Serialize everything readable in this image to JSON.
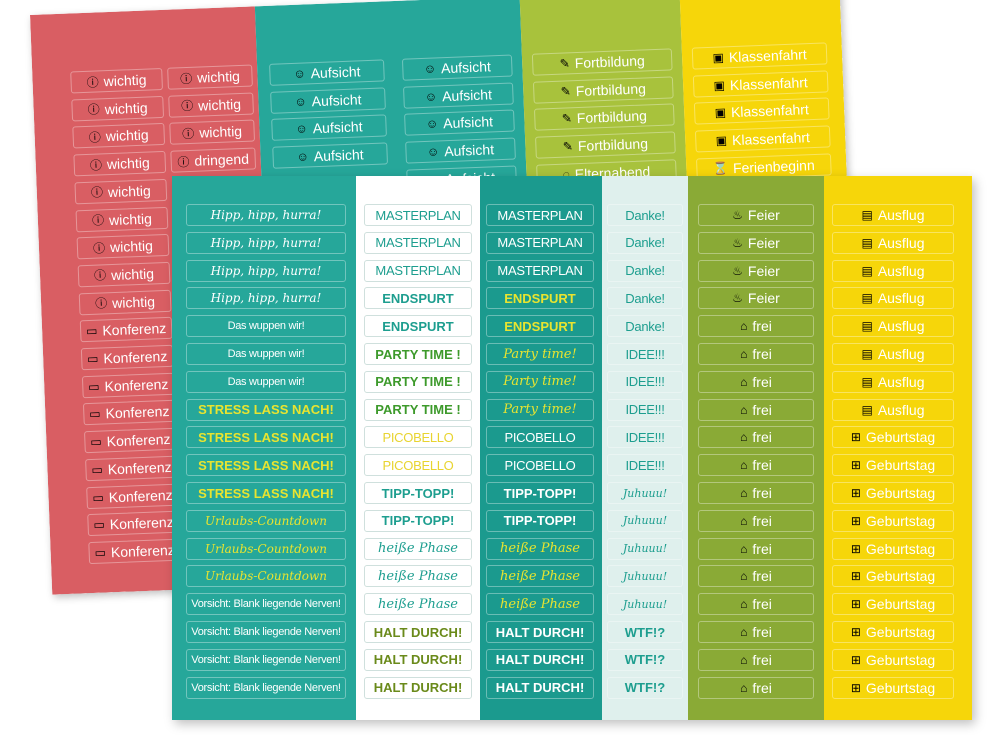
{
  "colors": {
    "red": "#d95e63",
    "teal": "#26a79a",
    "teal_dark": "#1b9a8e",
    "lime": "#a8c23c",
    "yellow": "#f6d60a",
    "white": "#ffffff",
    "pale": "#dff0ed",
    "olive": "#8aaa36",
    "highlight_yellow": "#e5e530"
  },
  "back_sheet": {
    "red_col1": [
      {
        "icon": "ⓘ",
        "text": "wichtig"
      },
      {
        "icon": "ⓘ",
        "text": "wichtig"
      },
      {
        "icon": "ⓘ",
        "text": "wichtig"
      },
      {
        "icon": "ⓘ",
        "text": "wichtig"
      },
      {
        "icon": "ⓘ",
        "text": "wichtig"
      },
      {
        "icon": "ⓘ",
        "text": "wichtig"
      },
      {
        "icon": "ⓘ",
        "text": "wichtig"
      },
      {
        "icon": "ⓘ",
        "text": "wichtig"
      },
      {
        "icon": "ⓘ",
        "text": "wichtig"
      },
      {
        "icon": "▭",
        "text": "Konferenz"
      },
      {
        "icon": "▭",
        "text": "Konferenz"
      },
      {
        "icon": "▭",
        "text": "Konferenz"
      },
      {
        "icon": "▭",
        "text": "Konferenz"
      },
      {
        "icon": "▭",
        "text": "Konferenz"
      },
      {
        "icon": "▭",
        "text": "Konferenz"
      },
      {
        "icon": "▭",
        "text": "Konferenz"
      },
      {
        "icon": "▭",
        "text": "Konferenz"
      },
      {
        "icon": "▭",
        "text": "Konferenz"
      }
    ],
    "red_col2": [
      {
        "icon": "ⓘ",
        "text": "wichtig"
      },
      {
        "icon": "ⓘ",
        "text": "wichtig"
      },
      {
        "icon": "ⓘ",
        "text": "wichtig"
      },
      {
        "icon": "ⓘ",
        "text": "dringend"
      }
    ],
    "teal_col1": [
      {
        "icon": "☺",
        "text": "Aufsicht"
      },
      {
        "icon": "☺",
        "text": "Aufsicht"
      },
      {
        "icon": "☺",
        "text": "Aufsicht"
      },
      {
        "icon": "☺",
        "text": "Aufsicht"
      }
    ],
    "teal_col2": [
      {
        "icon": "☺",
        "text": "Aufsicht"
      },
      {
        "icon": "☺",
        "text": "Aufsicht"
      },
      {
        "icon": "☺",
        "text": "Aufsicht"
      },
      {
        "icon": "☺",
        "text": "Aufsicht"
      },
      {
        "icon": "☺",
        "text": "Aufsicht"
      }
    ],
    "lime_col": [
      {
        "icon": "✎",
        "text": "Fortbildung"
      },
      {
        "icon": "✎",
        "text": "Fortbildung"
      },
      {
        "icon": "✎",
        "text": "Fortbildung"
      },
      {
        "icon": "✎",
        "text": "Fortbildung"
      },
      {
        "icon": "◌",
        "text": "Elternabend"
      }
    ],
    "yellow_col": [
      {
        "icon": "▣",
        "text": "Klassenfahrt"
      },
      {
        "icon": "▣",
        "text": "Klassenfahrt"
      },
      {
        "icon": "▣",
        "text": "Klassenfahrt"
      },
      {
        "icon": "▣",
        "text": "Klassenfahrt"
      },
      {
        "icon": "⌛",
        "text": "Ferienbeginn"
      }
    ]
  },
  "front_sheet": {
    "col1": [
      {
        "text": "Hipp, hipp, hurra!",
        "style": "hand",
        "color": "#ffffff"
      },
      {
        "text": "Hipp, hipp, hurra!",
        "style": "hand",
        "color": "#ffffff"
      },
      {
        "text": "Hipp, hipp, hurra!",
        "style": "hand",
        "color": "#ffffff"
      },
      {
        "text": "Hipp, hipp, hurra!",
        "style": "hand",
        "color": "#ffffff"
      },
      {
        "text": "Das wuppen wir!",
        "style": "narrow",
        "color": "#ffffff"
      },
      {
        "text": "Das wuppen wir!",
        "style": "narrow",
        "color": "#ffffff"
      },
      {
        "text": "Das wuppen wir!",
        "style": "narrow",
        "color": "#ffffff"
      },
      {
        "text": "STRESS LASS NACH!",
        "style": "bold",
        "color": "#e8e430"
      },
      {
        "text": "STRESS LASS NACH!",
        "style": "bold",
        "color": "#e8e430"
      },
      {
        "text": "STRESS LASS NACH!",
        "style": "bold",
        "color": "#e8e430"
      },
      {
        "text": "STRESS LASS NACH!",
        "style": "bold",
        "color": "#e8e430"
      },
      {
        "text": "Urlaubs-Countdown",
        "style": "hand",
        "color": "#e8e430"
      },
      {
        "text": "Urlaubs-Countdown",
        "style": "hand",
        "color": "#e8e430"
      },
      {
        "text": "Urlaubs-Countdown",
        "style": "hand",
        "color": "#e8e430"
      },
      {
        "text": "Vorsicht: Blank liegende Nerven!",
        "style": "narrow",
        "color": "#ffffff"
      },
      {
        "text": "Vorsicht: Blank liegende Nerven!",
        "style": "narrow",
        "color": "#ffffff"
      },
      {
        "text": "Vorsicht: Blank liegende Nerven!",
        "style": "narrow",
        "color": "#ffffff"
      },
      {
        "text": "Vorsicht: Blank liegende Nerven!",
        "style": "narrow",
        "color": "#ffffff"
      }
    ],
    "col2": [
      {
        "text": "MASTERPLAN",
        "style": "narrow",
        "color": "#1d9e8f"
      },
      {
        "text": "MASTERPLAN",
        "style": "narrow",
        "color": "#1d9e8f"
      },
      {
        "text": "MASTERPLAN",
        "style": "narrow",
        "color": "#1d9e8f"
      },
      {
        "text": "ENDSPURT",
        "style": "bold",
        "color": "#1d9e8f"
      },
      {
        "text": "ENDSPURT",
        "style": "bold",
        "color": "#1d9e8f"
      },
      {
        "text": "PARTY TIME !",
        "style": "bold",
        "color": "#3d9a2b"
      },
      {
        "text": "PARTY TIME !",
        "style": "bold",
        "color": "#3d9a2b"
      },
      {
        "text": "PARTY TIME !",
        "style": "bold",
        "color": "#3d9a2b"
      },
      {
        "text": "PICOBELLO",
        "style": "narrow",
        "color": "#e8d430"
      },
      {
        "text": "PICOBELLO",
        "style": "narrow",
        "color": "#e8d430"
      },
      {
        "text": "TIPP-TOPP!",
        "style": "bold",
        "color": "#1d9e8f"
      },
      {
        "text": "TIPP-TOPP!",
        "style": "bold",
        "color": "#1d9e8f"
      },
      {
        "text": "heiße Phase",
        "style": "hand",
        "color": "#1d9e8f"
      },
      {
        "text": "heiße Phase",
        "style": "hand",
        "color": "#1d9e8f"
      },
      {
        "text": "heiße Phase",
        "style": "hand",
        "color": "#1d9e8f"
      },
      {
        "text": "HALT DURCH!",
        "style": "bold",
        "color": "#6a8a1a"
      },
      {
        "text": "HALT DURCH!",
        "style": "bold",
        "color": "#6a8a1a"
      },
      {
        "text": "HALT DURCH!",
        "style": "bold",
        "color": "#6a8a1a"
      }
    ],
    "col3": [
      {
        "text": "MASTERPLAN",
        "style": "narrow",
        "color": "#ffffff"
      },
      {
        "text": "MASTERPLAN",
        "style": "narrow",
        "color": "#ffffff"
      },
      {
        "text": "MASTERPLAN",
        "style": "narrow",
        "color": "#ffffff"
      },
      {
        "text": "ENDSPURT",
        "style": "bold",
        "color": "#e8e430"
      },
      {
        "text": "ENDSPURT",
        "style": "bold",
        "color": "#e8e430"
      },
      {
        "text": "Party time!",
        "style": "hand",
        "color": "#e8e430"
      },
      {
        "text": "Party time!",
        "style": "hand",
        "color": "#e8e430"
      },
      {
        "text": "Party time!",
        "style": "hand",
        "color": "#e8e430"
      },
      {
        "text": "PICOBELLO",
        "style": "narrow",
        "color": "#ffffff"
      },
      {
        "text": "PICOBELLO",
        "style": "narrow",
        "color": "#ffffff"
      },
      {
        "text": "TIPP-TOPP!",
        "style": "bold",
        "color": "#ffffff"
      },
      {
        "text": "TIPP-TOPP!",
        "style": "bold",
        "color": "#ffffff"
      },
      {
        "text": "heiße Phase",
        "style": "hand",
        "color": "#e8e430"
      },
      {
        "text": "heiße Phase",
        "style": "hand",
        "color": "#e8e430"
      },
      {
        "text": "heiße Phase",
        "style": "hand",
        "color": "#e8e430"
      },
      {
        "text": "HALT DURCH!",
        "style": "bold",
        "color": "#ffffff"
      },
      {
        "text": "HALT DURCH!",
        "style": "bold",
        "color": "#ffffff"
      },
      {
        "text": "HALT DURCH!",
        "style": "bold",
        "color": "#ffffff"
      }
    ],
    "col4": [
      {
        "text": "Danke!",
        "style": "narrow",
        "color": "#1d9e8f"
      },
      {
        "text": "Danke!",
        "style": "narrow",
        "color": "#1d9e8f"
      },
      {
        "text": "Danke!",
        "style": "narrow",
        "color": "#1d9e8f"
      },
      {
        "text": "Danke!",
        "style": "narrow",
        "color": "#1d9e8f"
      },
      {
        "text": "Danke!",
        "style": "narrow",
        "color": "#1d9e8f"
      },
      {
        "text": "IDEE!!!",
        "style": "narrow",
        "color": "#1d9e8f"
      },
      {
        "text": "IDEE!!!",
        "style": "narrow",
        "color": "#1d9e8f"
      },
      {
        "text": "IDEE!!!",
        "style": "narrow",
        "color": "#1d9e8f"
      },
      {
        "text": "IDEE!!!",
        "style": "narrow",
        "color": "#1d9e8f"
      },
      {
        "text": "IDEE!!!",
        "style": "narrow",
        "color": "#1d9e8f"
      },
      {
        "text": "Juhuuu!",
        "style": "hand",
        "color": "#1d9e8f"
      },
      {
        "text": "Juhuuu!",
        "style": "hand",
        "color": "#1d9e8f"
      },
      {
        "text": "Juhuuu!",
        "style": "hand",
        "color": "#1d9e8f"
      },
      {
        "text": "Juhuuu!",
        "style": "hand",
        "color": "#1d9e8f"
      },
      {
        "text": "Juhuuu!",
        "style": "hand",
        "color": "#1d9e8f"
      },
      {
        "text": "WTF!?",
        "style": "bold",
        "color": "#1d9e8f"
      },
      {
        "text": "WTF!?",
        "style": "bold",
        "color": "#1d9e8f"
      },
      {
        "text": "WTF!?",
        "style": "bold",
        "color": "#1d9e8f"
      }
    ],
    "col5": [
      {
        "icon": "♨",
        "text": "Feier"
      },
      {
        "icon": "♨",
        "text": "Feier"
      },
      {
        "icon": "♨",
        "text": "Feier"
      },
      {
        "icon": "♨",
        "text": "Feier"
      },
      {
        "icon": "⌂",
        "text": "frei"
      },
      {
        "icon": "⌂",
        "text": "frei"
      },
      {
        "icon": "⌂",
        "text": "frei"
      },
      {
        "icon": "⌂",
        "text": "frei"
      },
      {
        "icon": "⌂",
        "text": "frei"
      },
      {
        "icon": "⌂",
        "text": "frei"
      },
      {
        "icon": "⌂",
        "text": "frei"
      },
      {
        "icon": "⌂",
        "text": "frei"
      },
      {
        "icon": "⌂",
        "text": "frei"
      },
      {
        "icon": "⌂",
        "text": "frei"
      },
      {
        "icon": "⌂",
        "text": "frei"
      },
      {
        "icon": "⌂",
        "text": "frei"
      },
      {
        "icon": "⌂",
        "text": "frei"
      },
      {
        "icon": "⌂",
        "text": "frei"
      }
    ],
    "col6": [
      {
        "icon": "▤",
        "text": "Ausflug"
      },
      {
        "icon": "▤",
        "text": "Ausflug"
      },
      {
        "icon": "▤",
        "text": "Ausflug"
      },
      {
        "icon": "▤",
        "text": "Ausflug"
      },
      {
        "icon": "▤",
        "text": "Ausflug"
      },
      {
        "icon": "▤",
        "text": "Ausflug"
      },
      {
        "icon": "▤",
        "text": "Ausflug"
      },
      {
        "icon": "▤",
        "text": "Ausflug"
      },
      {
        "icon": "⊞",
        "text": "Geburtstag"
      },
      {
        "icon": "⊞",
        "text": "Geburtstag"
      },
      {
        "icon": "⊞",
        "text": "Geburtstag"
      },
      {
        "icon": "⊞",
        "text": "Geburtstag"
      },
      {
        "icon": "⊞",
        "text": "Geburtstag"
      },
      {
        "icon": "⊞",
        "text": "Geburtstag"
      },
      {
        "icon": "⊞",
        "text": "Geburtstag"
      },
      {
        "icon": "⊞",
        "text": "Geburtstag"
      },
      {
        "icon": "⊞",
        "text": "Geburtstag"
      },
      {
        "icon": "⊞",
        "text": "Geburtstag"
      }
    ]
  }
}
